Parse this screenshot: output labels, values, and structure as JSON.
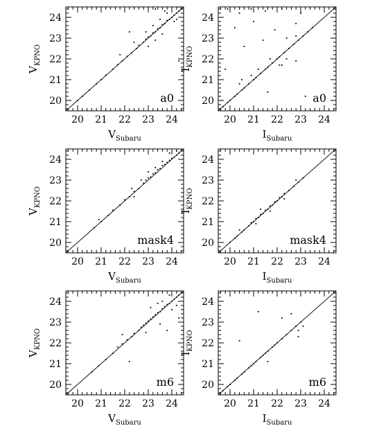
{
  "chart_data": [
    {
      "type": "scatter",
      "panel_label": "a0",
      "xlabel": {
        "main": "V",
        "sub": "Subaru"
      },
      "ylabel": {
        "main": "V",
        "sub": "KPNO"
      },
      "xlim": [
        19.5,
        24.5
      ],
      "ylim": [
        19.5,
        24.5
      ],
      "xticks": [
        "20",
        "21",
        "22",
        "23",
        "24"
      ],
      "yticks": [
        "20",
        "21",
        "22",
        "23",
        "24"
      ],
      "identity_line": true,
      "series": [
        {
          "values": [
            [
              20.0,
              20.0
            ],
            [
              20.2,
              20.2
            ],
            [
              20.5,
              20.5
            ],
            [
              20.8,
              20.8
            ],
            [
              21.0,
              21.0
            ],
            [
              21.2,
              21.22
            ],
            [
              21.5,
              21.5
            ],
            [
              21.7,
              21.72
            ],
            [
              21.9,
              21.9
            ],
            [
              22.1,
              22.12
            ],
            [
              22.3,
              22.3
            ],
            [
              22.5,
              22.5
            ],
            [
              22.6,
              22.65
            ],
            [
              22.8,
              22.8
            ],
            [
              22.9,
              22.95
            ],
            [
              23.0,
              23.05
            ],
            [
              23.1,
              23.1
            ],
            [
              23.2,
              23.25
            ],
            [
              23.3,
              23.3
            ],
            [
              23.4,
              23.45
            ],
            [
              23.5,
              23.5
            ],
            [
              23.6,
              23.65
            ],
            [
              23.7,
              23.7
            ],
            [
              23.8,
              23.85
            ],
            [
              23.9,
              23.9
            ],
            [
              24.0,
              24.0
            ],
            [
              24.1,
              24.1
            ],
            [
              24.2,
              24.2
            ],
            [
              24.3,
              24.3
            ],
            [
              24.4,
              24.4
            ],
            [
              23.2,
              23.6
            ],
            [
              23.5,
              23.9
            ],
            [
              23.8,
              24.2
            ],
            [
              22.9,
              23.3
            ],
            [
              23.6,
              23.2
            ],
            [
              24.1,
              23.8
            ],
            [
              22.4,
              22.8
            ],
            [
              23.0,
              22.6
            ],
            [
              23.3,
              22.9
            ],
            [
              24.2,
              23.9
            ],
            [
              21.8,
              22.2
            ],
            [
              23.7,
              24.3
            ],
            [
              24.3,
              24.5
            ],
            [
              22.2,
              23.3
            ],
            [
              23.3,
              24.4
            ],
            [
              24.3,
              21.9
            ]
          ]
        }
      ]
    },
    {
      "type": "scatter",
      "panel_label": "a0",
      "xlabel": {
        "main": "I",
        "sub": "Subaru"
      },
      "ylabel": {
        "main": "I",
        "sub": "KPNO"
      },
      "xlim": [
        19.5,
        24.5
      ],
      "ylim": [
        19.5,
        24.5
      ],
      "xticks": [
        "20",
        "21",
        "22",
        "23",
        "24"
      ],
      "yticks": [
        "20",
        "21",
        "22",
        "23",
        "24"
      ],
      "identity_line": true,
      "series": [
        {
          "values": [
            [
              19.7,
              19.7
            ],
            [
              19.9,
              19.9
            ],
            [
              20.0,
              20.0
            ],
            [
              20.2,
              20.2
            ],
            [
              20.3,
              20.3
            ],
            [
              20.5,
              20.5
            ],
            [
              20.6,
              20.6
            ],
            [
              20.8,
              20.8
            ],
            [
              21.0,
              21.0
            ],
            [
              21.1,
              21.1
            ],
            [
              21.3,
              21.3
            ],
            [
              21.5,
              21.5
            ],
            [
              21.6,
              21.6
            ],
            [
              21.8,
              21.8
            ],
            [
              22.0,
              22.0
            ],
            [
              22.1,
              22.1
            ],
            [
              22.3,
              22.3
            ],
            [
              22.5,
              22.5
            ],
            [
              22.7,
              22.7
            ],
            [
              22.9,
              22.9
            ],
            [
              23.1,
              23.1
            ],
            [
              23.3,
              23.3
            ],
            [
              23.5,
              23.5
            ],
            [
              21.2,
              21.5
            ],
            [
              21.7,
              22.0
            ],
            [
              20.9,
              21.2
            ],
            [
              22.1,
              21.7
            ],
            [
              22.4,
              22.0
            ],
            [
              20.4,
              20.8
            ],
            [
              22.8,
              23.1
            ],
            [
              22.2,
              21.7
            ],
            [
              19.9,
              24.4
            ],
            [
              20.4,
              24.2
            ],
            [
              20.9,
              24.4
            ],
            [
              21.5,
              24.3
            ],
            [
              22.2,
              24.4
            ],
            [
              23.0,
              24.2
            ],
            [
              20.2,
              23.5
            ],
            [
              21.0,
              23.8
            ],
            [
              21.9,
              23.4
            ],
            [
              22.8,
              23.7
            ],
            [
              20.6,
              22.6
            ],
            [
              21.4,
              22.9
            ],
            [
              22.4,
              23.0
            ],
            [
              19.8,
              21.5
            ],
            [
              20.5,
              21.0
            ],
            [
              22.8,
              21.9
            ],
            [
              23.2,
              20.2
            ],
            [
              21.6,
              20.4
            ]
          ]
        }
      ]
    },
    {
      "type": "scatter",
      "panel_label": "mask4",
      "xlabel": {
        "main": "V",
        "sub": "Subaru"
      },
      "ylabel": {
        "main": "V",
        "sub": "KPNO"
      },
      "xlim": [
        19.5,
        24.5
      ],
      "ylim": [
        19.5,
        24.5
      ],
      "xticks": [
        "20",
        "21",
        "22",
        "23",
        "24"
      ],
      "yticks": [
        "20",
        "21",
        "22",
        "23",
        "24"
      ],
      "identity_line": true,
      "series": [
        {
          "values": [
            [
              20.7,
              20.7
            ],
            [
              21.0,
              21.0
            ],
            [
              21.3,
              21.3
            ],
            [
              21.5,
              21.55
            ],
            [
              21.8,
              21.8
            ],
            [
              22.0,
              22.05
            ],
            [
              22.2,
              22.2
            ],
            [
              22.4,
              22.45
            ],
            [
              22.6,
              22.6
            ],
            [
              22.8,
              22.85
            ],
            [
              22.9,
              23.0
            ],
            [
              23.0,
              23.1
            ],
            [
              23.1,
              23.15
            ],
            [
              23.2,
              23.3
            ],
            [
              23.3,
              23.35
            ],
            [
              23.4,
              23.5
            ],
            [
              23.5,
              23.55
            ],
            [
              23.6,
              23.7
            ],
            [
              23.7,
              23.75
            ],
            [
              23.8,
              23.85
            ],
            [
              23.9,
              23.95
            ],
            [
              24.0,
              24.05
            ],
            [
              24.1,
              24.1
            ],
            [
              24.2,
              24.2
            ],
            [
              24.3,
              24.3
            ],
            [
              23.3,
              23.6
            ],
            [
              23.6,
              23.9
            ],
            [
              22.7,
              23.0
            ],
            [
              23.9,
              24.3
            ],
            [
              24.2,
              24.4
            ],
            [
              22.3,
              22.6
            ],
            [
              23.0,
              23.4
            ],
            [
              22.4,
              22.2
            ],
            [
              20.9,
              21.1
            ]
          ]
        }
      ]
    },
    {
      "type": "scatter",
      "panel_label": "mask4",
      "xlabel": {
        "main": "I",
        "sub": "Subaru"
      },
      "ylabel": {
        "main": "I",
        "sub": "KPNO"
      },
      "xlim": [
        19.5,
        24.5
      ],
      "ylim": [
        19.5,
        24.5
      ],
      "xticks": [
        "20",
        "21",
        "22",
        "23",
        "24"
      ],
      "yticks": [
        "20",
        "21",
        "22",
        "23",
        "24"
      ],
      "identity_line": true,
      "series": [
        {
          "values": [
            [
              20.0,
              20.0
            ],
            [
              20.2,
              20.2
            ],
            [
              20.3,
              20.3
            ],
            [
              20.5,
              20.5
            ],
            [
              20.6,
              20.6
            ],
            [
              20.8,
              20.8
            ],
            [
              20.9,
              20.95
            ],
            [
              21.0,
              21.0
            ],
            [
              21.1,
              21.15
            ],
            [
              21.2,
              21.2
            ],
            [
              21.3,
              21.35
            ],
            [
              21.4,
              21.4
            ],
            [
              21.5,
              21.55
            ],
            [
              21.6,
              21.6
            ],
            [
              21.7,
              21.75
            ],
            [
              21.8,
              21.8
            ],
            [
              21.9,
              21.95
            ],
            [
              22.0,
              22.0
            ],
            [
              22.1,
              22.15
            ],
            [
              22.2,
              22.2
            ],
            [
              22.3,
              22.35
            ],
            [
              22.5,
              22.5
            ],
            [
              22.7,
              22.7
            ],
            [
              22.9,
              22.9
            ],
            [
              23.1,
              23.1
            ],
            [
              20.4,
              20.6
            ],
            [
              21.1,
              20.9
            ],
            [
              21.7,
              21.5
            ],
            [
              22.3,
              22.1
            ],
            [
              22.8,
              23.0
            ],
            [
              21.3,
              21.6
            ]
          ]
        }
      ]
    },
    {
      "type": "scatter",
      "panel_label": "m6",
      "xlabel": {
        "main": "V",
        "sub": "Subaru"
      },
      "ylabel": {
        "main": "V",
        "sub": "KPNO"
      },
      "xlim": [
        19.5,
        24.5
      ],
      "ylim": [
        19.5,
        24.5
      ],
      "xticks": [
        "20",
        "21",
        "22",
        "23",
        "24"
      ],
      "yticks": [
        "20",
        "21",
        "22",
        "23",
        "24"
      ],
      "identity_line": true,
      "series": [
        {
          "values": [
            [
              20.6,
              20.6
            ],
            [
              20.9,
              20.9
            ],
            [
              21.2,
              21.2
            ],
            [
              21.5,
              21.5
            ],
            [
              21.7,
              21.8
            ],
            [
              21.9,
              21.95
            ],
            [
              22.1,
              22.15
            ],
            [
              22.3,
              22.3
            ],
            [
              22.4,
              22.45
            ],
            [
              22.6,
              22.6
            ],
            [
              22.7,
              22.75
            ],
            [
              22.8,
              22.85
            ],
            [
              22.9,
              22.95
            ],
            [
              23.0,
              23.05
            ],
            [
              23.1,
              23.15
            ],
            [
              23.2,
              23.25
            ],
            [
              23.3,
              23.35
            ],
            [
              23.4,
              23.45
            ],
            [
              23.5,
              23.5
            ],
            [
              23.6,
              23.65
            ],
            [
              23.7,
              23.75
            ],
            [
              23.8,
              23.85
            ],
            [
              23.9,
              23.9
            ],
            [
              24.0,
              24.0
            ],
            [
              24.1,
              24.1
            ],
            [
              24.2,
              24.2
            ],
            [
              24.3,
              24.3
            ],
            [
              23.6,
              24.0
            ],
            [
              23.9,
              24.3
            ],
            [
              23.4,
              23.9
            ],
            [
              24.0,
              23.6
            ],
            [
              24.2,
              23.8
            ],
            [
              23.5,
              22.9
            ],
            [
              22.9,
              22.5
            ],
            [
              24.3,
              23.2
            ],
            [
              22.2,
              21.1
            ],
            [
              21.9,
              22.4
            ],
            [
              23.1,
              23.7
            ],
            [
              24.2,
              24.5
            ],
            [
              23.8,
              22.6
            ]
          ]
        }
      ]
    },
    {
      "type": "scatter",
      "panel_label": "m6",
      "xlabel": {
        "main": "I",
        "sub": "Subaru"
      },
      "ylabel": {
        "main": "I",
        "sub": "KPNO"
      },
      "xlim": [
        19.5,
        24.5
      ],
      "ylim": [
        19.5,
        24.5
      ],
      "xticks": [
        "20",
        "21",
        "22",
        "23",
        "24"
      ],
      "yticks": [
        "20",
        "21",
        "22",
        "23",
        "24"
      ],
      "identity_line": true,
      "series": [
        {
          "values": [
            [
              19.7,
              19.7
            ],
            [
              19.9,
              19.9
            ],
            [
              20.0,
              20.0
            ],
            [
              20.2,
              20.2
            ],
            [
              20.3,
              20.3
            ],
            [
              20.5,
              20.5
            ],
            [
              20.6,
              20.6
            ],
            [
              20.8,
              20.8
            ],
            [
              20.9,
              20.9
            ],
            [
              21.0,
              21.0
            ],
            [
              21.1,
              21.1
            ],
            [
              21.3,
              21.3
            ],
            [
              21.4,
              21.4
            ],
            [
              21.5,
              21.5
            ],
            [
              21.6,
              21.6
            ],
            [
              21.8,
              21.8
            ],
            [
              21.9,
              21.9
            ],
            [
              22.0,
              22.0
            ],
            [
              22.2,
              22.2
            ],
            [
              22.4,
              22.4
            ],
            [
              22.6,
              22.6
            ],
            [
              22.8,
              22.8
            ],
            [
              23.0,
              23.0
            ],
            [
              22.9,
              22.6
            ],
            [
              23.1,
              22.8
            ],
            [
              22.6,
              23.4
            ],
            [
              21.2,
              23.5
            ],
            [
              20.4,
              22.1
            ],
            [
              22.2,
              23.2
            ],
            [
              21.6,
              21.1
            ],
            [
              22.9,
              22.3
            ]
          ]
        }
      ]
    }
  ]
}
